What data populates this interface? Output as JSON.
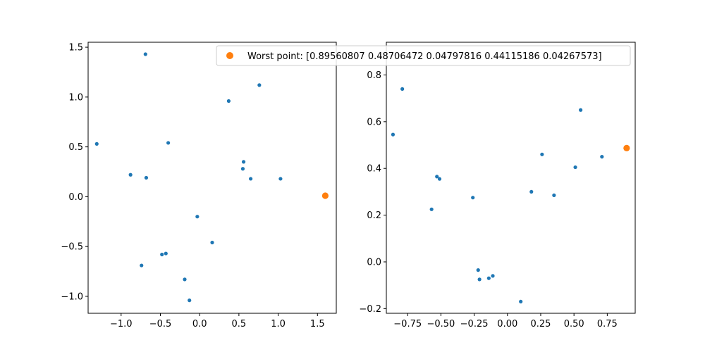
{
  "chart_data": [
    {
      "type": "scatter",
      "xlim": [
        -1.42,
        1.74
      ],
      "ylim": [
        -1.17,
        1.55
      ],
      "xticks": [
        -1.0,
        -0.5,
        0.0,
        0.5,
        1.0,
        1.5
      ],
      "xtick_labels": [
        "−1.0",
        "−0.5",
        "0.0",
        "0.5",
        "1.0",
        "1.5"
      ],
      "yticks": [
        -1.0,
        -0.5,
        0.0,
        0.5,
        1.0,
        1.5
      ],
      "ytick_labels": [
        "−1.0",
        "−0.5",
        "0.0",
        "0.5",
        "1.0",
        "1.5"
      ],
      "grid": false,
      "series": [
        {
          "color": "#1f77b4",
          "marker_size": "small",
          "points": [
            [
              -1.31,
              0.53
            ],
            [
              -0.69,
              1.43
            ],
            [
              -0.88,
              0.22
            ],
            [
              -0.68,
              0.19
            ],
            [
              -0.4,
              0.54
            ],
            [
              0.37,
              0.96
            ],
            [
              0.76,
              1.12
            ],
            [
              0.56,
              0.35
            ],
            [
              0.55,
              0.28
            ],
            [
              0.65,
              0.18
            ],
            [
              1.03,
              0.18
            ],
            [
              -0.03,
              -0.2
            ],
            [
              0.16,
              -0.46
            ],
            [
              -0.48,
              -0.58
            ],
            [
              -0.43,
              -0.57
            ],
            [
              -0.74,
              -0.69
            ],
            [
              -0.19,
              -0.83
            ],
            [
              -0.13,
              -1.04
            ]
          ]
        },
        {
          "color": "#ff7f0e",
          "marker_size": "large",
          "points": [
            [
              1.6,
              0.01
            ]
          ]
        }
      ]
    },
    {
      "type": "scatter",
      "xlim": [
        -0.91,
        0.96
      ],
      "ylim": [
        -0.22,
        0.94
      ],
      "xticks": [
        -0.75,
        -0.5,
        -0.25,
        0.0,
        0.25,
        0.5,
        0.75
      ],
      "xtick_labels": [
        "−0.75",
        "−0.50",
        "−0.25",
        "0.00",
        "0.25",
        "0.50",
        "0.75"
      ],
      "yticks": [
        -0.2,
        0.0,
        0.2,
        0.4,
        0.6,
        0.8
      ],
      "ytick_labels": [
        "−0.2",
        "0.0",
        "0.2",
        "0.4",
        "0.6",
        "0.8"
      ],
      "grid": false,
      "series": [
        {
          "color": "#1f77b4",
          "marker_size": "small",
          "points": [
            [
              -0.86,
              0.545
            ],
            [
              -0.79,
              0.74
            ],
            [
              -0.57,
              0.225
            ],
            [
              -0.53,
              0.365
            ],
            [
              -0.51,
              0.355
            ],
            [
              -0.26,
              0.275
            ],
            [
              -0.22,
              -0.035
            ],
            [
              -0.21,
              -0.075
            ],
            [
              -0.14,
              -0.07
            ],
            [
              -0.11,
              -0.06
            ],
            [
              0.1,
              -0.17
            ],
            [
              0.18,
              0.3
            ],
            [
              0.26,
              0.46
            ],
            [
              0.35,
              0.285
            ],
            [
              0.51,
              0.405
            ],
            [
              0.55,
              0.65
            ],
            [
              0.71,
              0.45
            ]
          ]
        },
        {
          "color": "#ff7f0e",
          "marker_size": "large",
          "points": [
            [
              0.8956,
              0.4871
            ]
          ]
        }
      ]
    }
  ],
  "legend": {
    "location": "top-center",
    "entries": [
      {
        "marker_color": "#ff7f0e",
        "label": "Worst point: [0.89560807 0.48706472 0.04797816 0.44115186 0.04267573]"
      }
    ]
  }
}
